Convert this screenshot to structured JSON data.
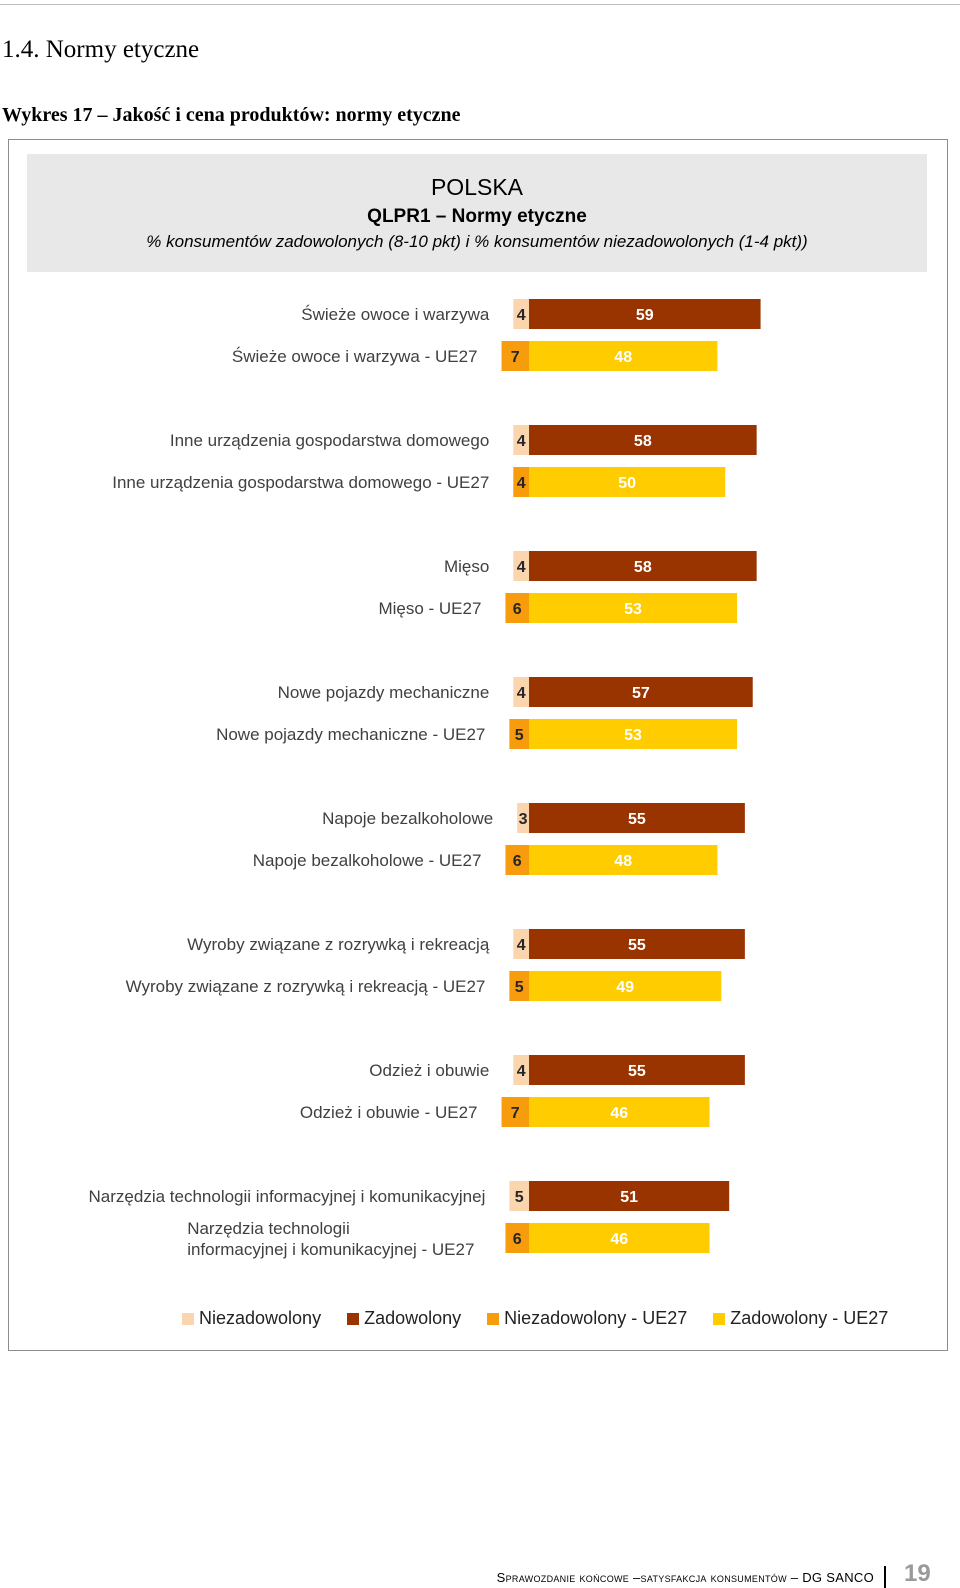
{
  "document": {
    "section_heading": "1.4. Normy etyczne",
    "chart_caption": "Wykres 17 – Jakość i cena produktów: normy etyczne",
    "footer_text": "Sprawozdanie końcowe –satysfakcja konsumentów – DG SANCO",
    "page_number": "19"
  },
  "chart_data": {
    "type": "bar",
    "orientation": "horizontal-stacked",
    "title": "POLSKA",
    "subtitle": "QLPR1 – Normy etyczne",
    "description": "% konsumentów zadowolonych (8-10 pkt) i % konsumentów niezadowolonych (1-4 pkt))",
    "legend_position": "bottom",
    "colors": {
      "niezadowolony": "#fbd5ad",
      "zadowolony": "#993300",
      "niezadowolony_ue27": "#f79c0d",
      "zadowolony_ue27": "#ffcc00"
    },
    "value_text_colors": {
      "niezadowolony": "#262626",
      "zadowolony": "#ffffff",
      "niezadowolony_ue27": "#262626",
      "zadowolony_ue27": "#ffffff"
    },
    "legend": [
      "Niezadowolony",
      "Zadowolony",
      "Niezadowolony - UE27",
      "Zadowolony - UE27"
    ],
    "groups": [
      {
        "pl_label": "Świeże owoce i warzywa",
        "pl_dissatisfied": 4,
        "pl_satisfied": 59,
        "ue_label": "Świeże owoce i warzywa - UE27",
        "ue_dissatisfied": 7,
        "ue_satisfied": 48
      },
      {
        "pl_label": "Inne urządzenia gospodarstwa domowego",
        "pl_dissatisfied": 4,
        "pl_satisfied": 58,
        "ue_label": "Inne urządzenia gospodarstwa domowego - UE27",
        "ue_dissatisfied": 4,
        "ue_satisfied": 50
      },
      {
        "pl_label": "Mięso",
        "pl_dissatisfied": 4,
        "pl_satisfied": 58,
        "ue_label": "Mięso - UE27",
        "ue_dissatisfied": 6,
        "ue_satisfied": 53
      },
      {
        "pl_label": "Nowe pojazdy mechaniczne",
        "pl_dissatisfied": 4,
        "pl_satisfied": 57,
        "ue_label": "Nowe pojazdy mechaniczne - UE27",
        "ue_dissatisfied": 5,
        "ue_satisfied": 53
      },
      {
        "pl_label": "Napoje bezalkoholowe",
        "pl_dissatisfied": 3,
        "pl_satisfied": 55,
        "ue_label": "Napoje bezalkoholowe - UE27",
        "ue_dissatisfied": 6,
        "ue_satisfied": 48
      },
      {
        "pl_label": "Wyroby związane z rozrywką i rekreacją",
        "pl_dissatisfied": 4,
        "pl_satisfied": 55,
        "ue_label": "Wyroby związane z rozrywką i rekreacją - UE27",
        "ue_dissatisfied": 5,
        "ue_satisfied": 49
      },
      {
        "pl_label": "Odzież i obuwie",
        "pl_dissatisfied": 4,
        "pl_satisfied": 55,
        "ue_label": "Odzież i obuwie - UE27",
        "ue_dissatisfied": 7,
        "ue_satisfied": 46
      },
      {
        "pl_label": "Narzędzia technologii informacyjnej i komunikacyjnej",
        "pl_dissatisfied": 5,
        "pl_satisfied": 51,
        "ue_label": "Narzędzia technologii informacyjnej i komunikacyjnej - UE27",
        "ue_label_lines": [
          "Narzędzia technologii",
          "informacyjnej i komunikacyjnej - UE27"
        ],
        "ue_dissatisfied": 6,
        "ue_satisfied": 46
      }
    ]
  }
}
